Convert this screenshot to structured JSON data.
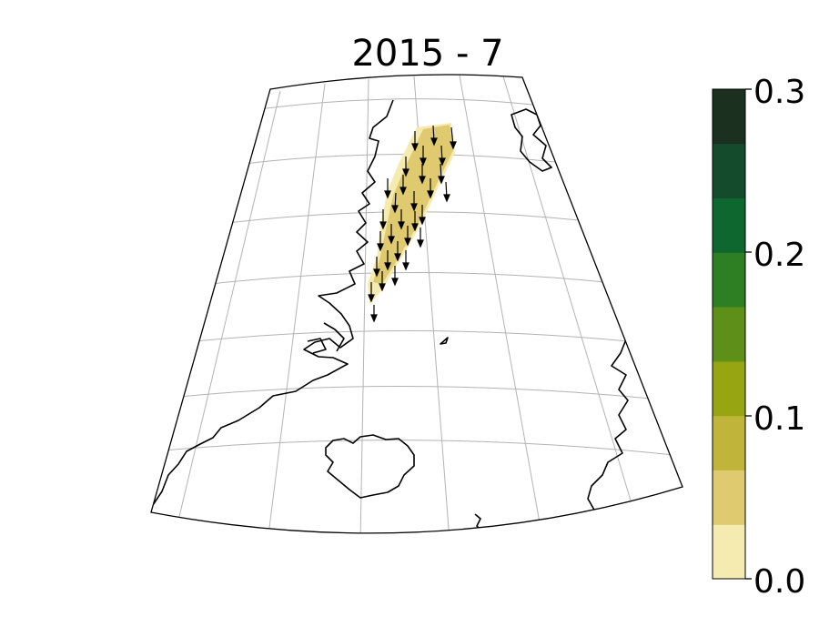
{
  "title": "2015 - 7",
  "colorbar": {
    "min": 0.0,
    "max": 0.3,
    "tick_labels": [
      "0.0",
      "0.1",
      "0.2",
      "0.3"
    ],
    "levels": [
      0.0,
      0.0333,
      0.0667,
      0.1,
      0.1333,
      0.1667,
      0.2,
      0.2333,
      0.2667,
      0.3
    ],
    "colors": [
      "#f5ebb0",
      "#e0ca70",
      "#c0b43a",
      "#97a513",
      "#5e8f18",
      "#2e7f23",
      "#0f6730",
      "#144b2d",
      "#1c301f"
    ]
  },
  "map_style": {
    "coastline_color": "#000000",
    "graticule_color": "#b3b3b3",
    "field_color_light": "#f5ebb0",
    "field_color_dark": "#e0ca70",
    "arrow_color": "#000000"
  }
}
